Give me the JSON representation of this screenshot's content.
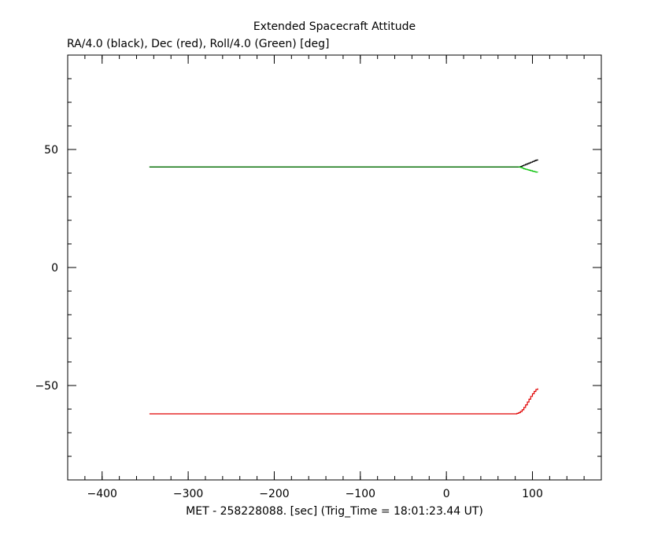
{
  "chart_data": {
    "type": "line",
    "title": "Extended Spacecraft Attitude",
    "subtitle": "RA/4.0 (black), Dec (red), Roll/4.0 (Green) [deg]",
    "xlabel": "MET - 258228088. [sec] (Trig_Time = 18:01:23.44 UT)",
    "ylabel": "",
    "xlim": [
      -440,
      180
    ],
    "ylim": [
      -90,
      90
    ],
    "x_ticks": [
      -400,
      -300,
      -200,
      -100,
      0,
      100
    ],
    "x_tick_labels": [
      "−400",
      "−300",
      "−200",
      "−100",
      "0",
      "100"
    ],
    "y_ticks": [
      -50,
      0,
      50
    ],
    "y_tick_labels": [
      "−50",
      "0",
      "50"
    ],
    "x_minor_step": 20,
    "y_minor_step": 10,
    "grid": false,
    "series": [
      {
        "color": "#000000",
        "x": [
          -345,
          84,
          86,
          88,
          90,
          92,
          94,
          96,
          98,
          100,
          102,
          104,
          106
        ],
        "y": [
          42.6,
          42.6,
          42.8,
          43.1,
          43.4,
          43.7,
          44.0,
          44.3,
          44.6,
          44.9,
          45.2,
          45.5,
          45.8
        ]
      },
      {
        "color": "#e00000",
        "x": [
          -345,
          80,
          82,
          84,
          86,
          88,
          90,
          92,
          94,
          96,
          98,
          100,
          102,
          104,
          106
        ],
        "y": [
          -62.0,
          -62.0,
          -61.8,
          -61.5,
          -61.0,
          -60.3,
          -59.3,
          -58.2,
          -57.0,
          -55.8,
          -54.6,
          -53.5,
          -52.5,
          -51.7,
          -51.2
        ]
      },
      {
        "color": "#00c000",
        "x": [
          -345,
          84,
          86,
          88,
          90,
          92,
          94,
          96,
          98,
          100,
          102,
          104,
          106
        ],
        "y": [
          42.6,
          42.6,
          42.4,
          42.1,
          41.8,
          41.6,
          41.4,
          41.2,
          41.0,
          40.8,
          40.6,
          40.4,
          40.3
        ]
      },
      {
        "color": "#006400",
        "x": [
          -345,
          84
        ],
        "y": [
          42.6,
          42.6
        ]
      }
    ]
  }
}
